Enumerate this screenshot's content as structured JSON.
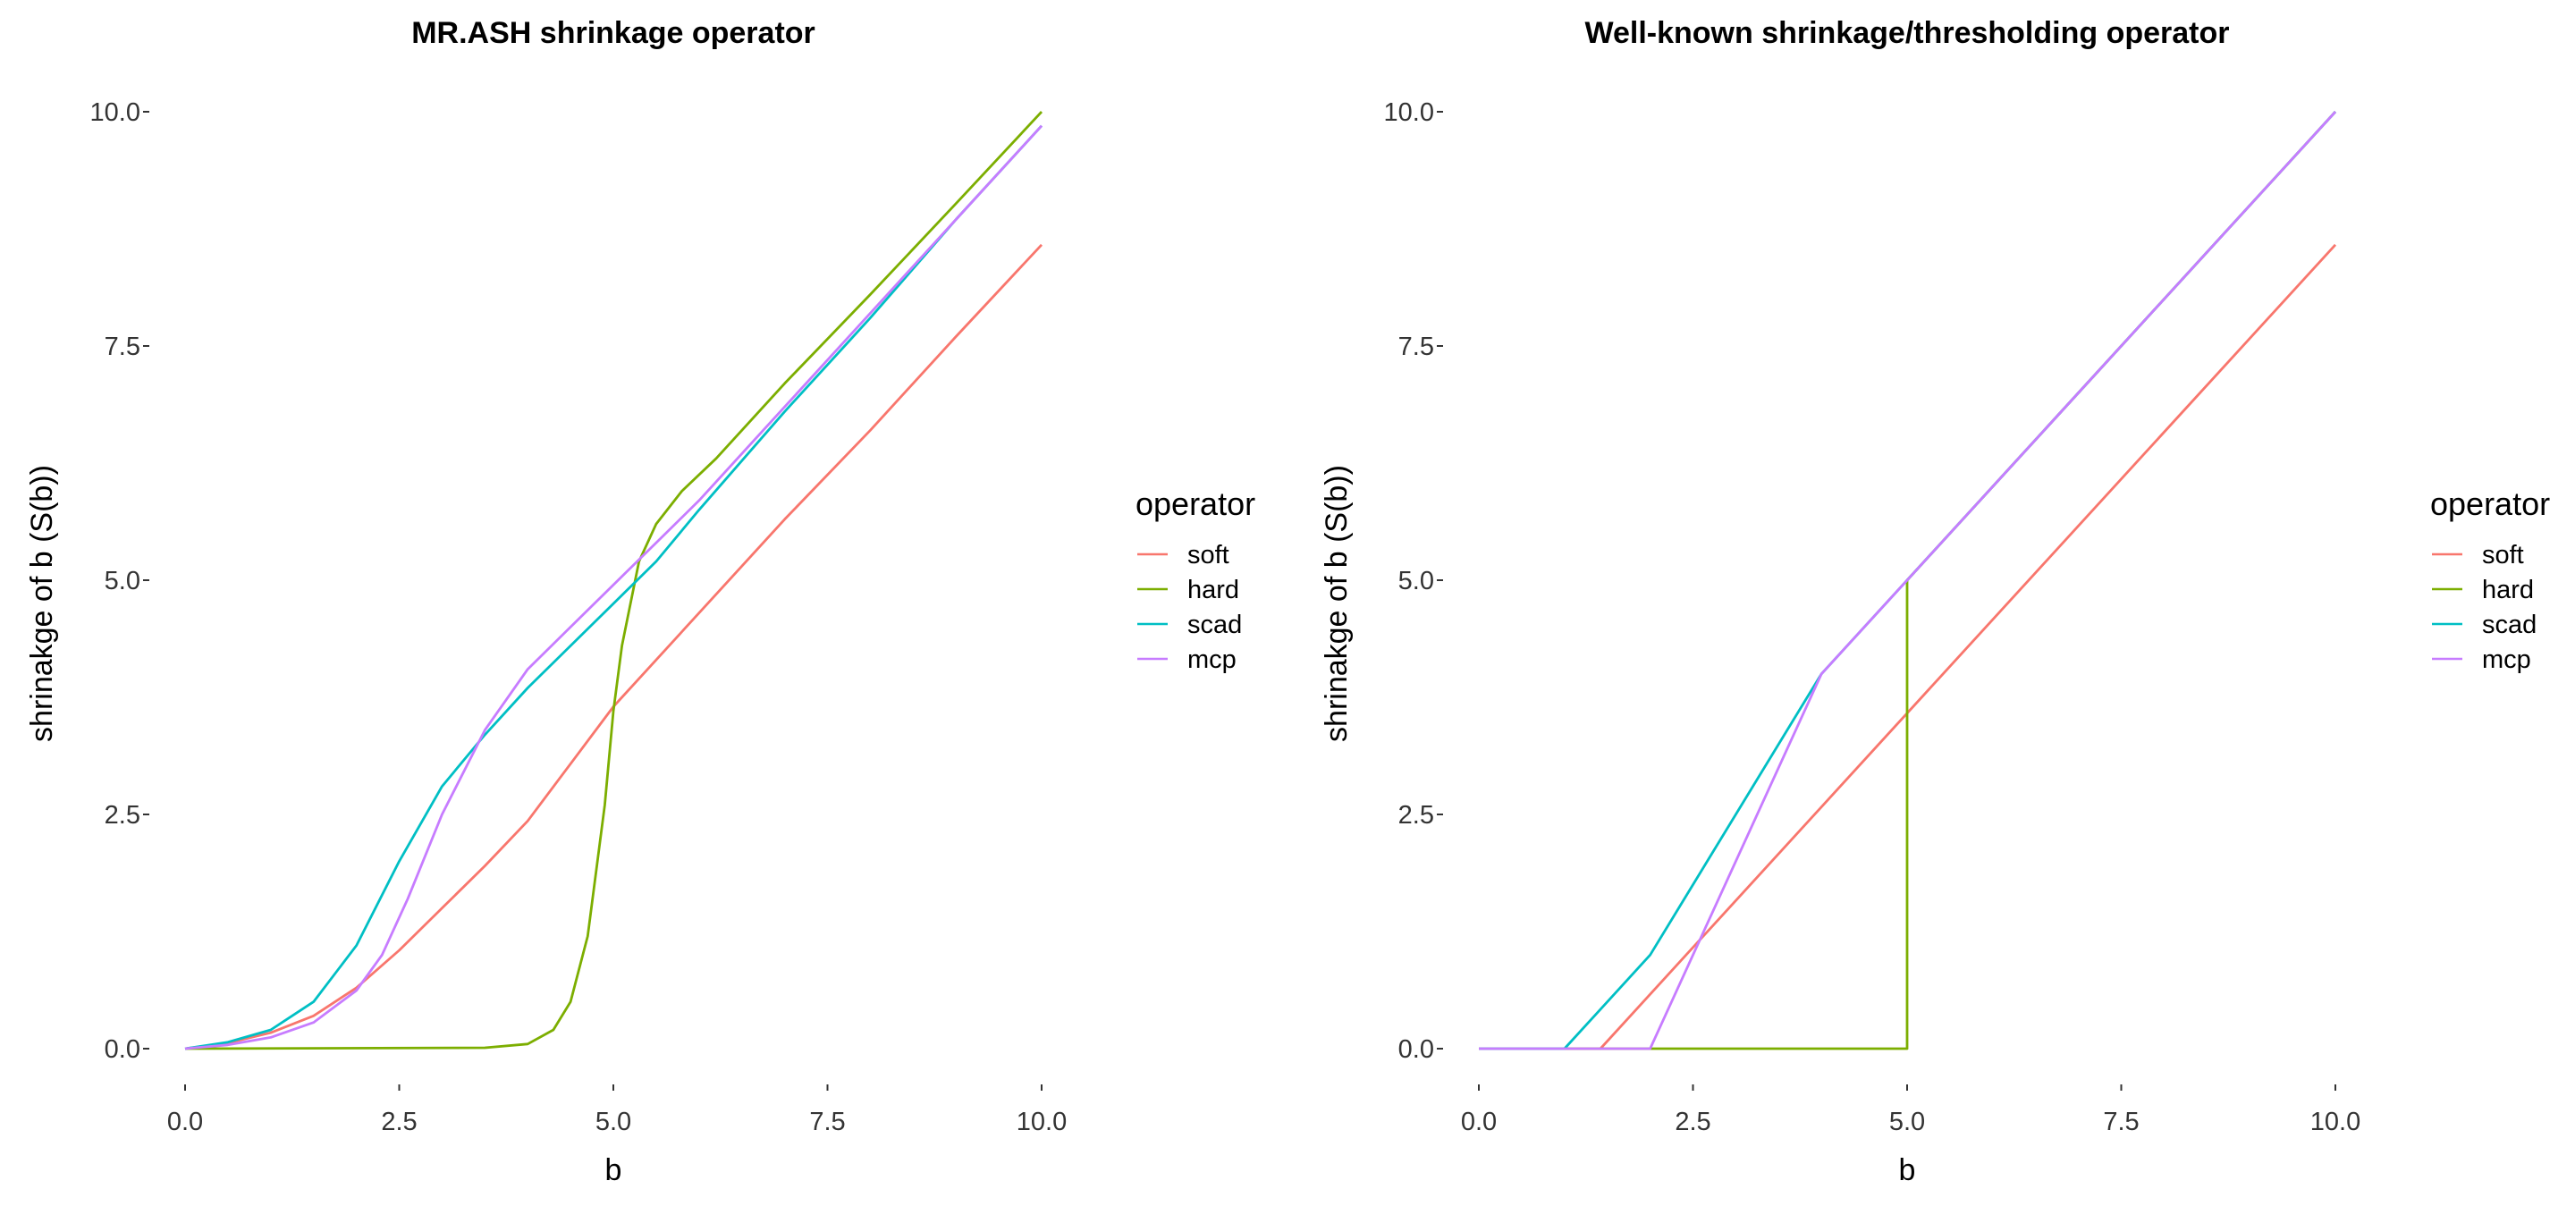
{
  "chart_data": [
    {
      "type": "line",
      "title": "MR.ASH shrinkage operator",
      "xlabel": "b",
      "ylabel": "shrinakge of b (S(b))",
      "xlim": [
        0,
        10
      ],
      "ylim": [
        0,
        10
      ],
      "xticks": [
        "0.0",
        "2.5",
        "5.0",
        "7.5",
        "10.0"
      ],
      "yticks": [
        "0.0",
        "2.5",
        "5.0",
        "7.5",
        "10.0"
      ],
      "grid": false,
      "legend": {
        "title": "operator",
        "position": "right"
      },
      "series": [
        {
          "name": "soft",
          "color": "#F8766D",
          "x": [
            0,
            0.5,
            1,
            1.5,
            2,
            2.5,
            3,
            3.5,
            4,
            5,
            6,
            7,
            8,
            9,
            10
          ],
          "y": [
            0,
            0.06,
            0.17,
            0.35,
            0.65,
            1.05,
            1.5,
            1.95,
            2.43,
            3.65,
            4.65,
            5.65,
            6.6,
            7.6,
            8.58
          ]
        },
        {
          "name": "hard",
          "color": "#7CAE00",
          "x": [
            0,
            3.5,
            4.0,
            4.3,
            4.5,
            4.7,
            4.9,
            5.0,
            5.1,
            5.3,
            5.5,
            5.8,
            6.2,
            7,
            8,
            9,
            10
          ],
          "y": [
            0,
            0.01,
            0.05,
            0.2,
            0.5,
            1.2,
            2.6,
            3.6,
            4.3,
            5.2,
            5.6,
            5.95,
            6.3,
            7.1,
            8.05,
            9.02,
            10.0
          ]
        },
        {
          "name": "scad",
          "color": "#00BFC4",
          "x": [
            0,
            0.5,
            1,
            1.5,
            2,
            2.5,
            3,
            3.5,
            4,
            4.5,
            5,
            5.5,
            6,
            7,
            8,
            9,
            10
          ],
          "y": [
            0,
            0.07,
            0.2,
            0.5,
            1.1,
            2.0,
            2.8,
            3.35,
            3.85,
            4.3,
            4.75,
            5.2,
            5.75,
            6.8,
            7.8,
            8.85,
            9.85
          ]
        },
        {
          "name": "mcp",
          "color": "#C77CFF",
          "x": [
            0,
            0.5,
            1,
            1.5,
            2,
            2.3,
            2.6,
            3,
            3.5,
            4,
            4.5,
            5,
            5.5,
            6,
            7,
            8,
            9,
            10
          ],
          "y": [
            0,
            0.04,
            0.12,
            0.28,
            0.62,
            1.0,
            1.6,
            2.5,
            3.4,
            4.05,
            4.5,
            4.95,
            5.4,
            5.85,
            6.85,
            7.85,
            8.85,
            9.85
          ]
        }
      ]
    },
    {
      "type": "line",
      "title": "Well-known shrinkage/thresholding operator",
      "xlabel": "b",
      "ylabel": "shrinakge of b (S(b))",
      "xlim": [
        0,
        10
      ],
      "ylim": [
        0,
        10
      ],
      "xticks": [
        "0.0",
        "2.5",
        "5.0",
        "7.5",
        "10.0"
      ],
      "yticks": [
        "0.0",
        "2.5",
        "5.0",
        "7.5",
        "10.0"
      ],
      "grid": false,
      "legend": {
        "title": "operator",
        "position": "right"
      },
      "series": [
        {
          "name": "soft",
          "color": "#F8766D",
          "x": [
            0,
            1.42,
            10
          ],
          "y": [
            0,
            0,
            8.58
          ]
        },
        {
          "name": "hard",
          "color": "#7CAE00",
          "x": [
            0,
            5,
            5,
            10
          ],
          "y": [
            0,
            0,
            5,
            10
          ]
        },
        {
          "name": "scad",
          "color": "#00BFC4",
          "x": [
            0,
            1,
            2,
            4,
            10
          ],
          "y": [
            0,
            0,
            1,
            4,
            10
          ]
        },
        {
          "name": "mcp",
          "color": "#C77CFF",
          "x": [
            0,
            2,
            4,
            10
          ],
          "y": [
            0,
            0,
            4,
            10
          ]
        }
      ]
    }
  ]
}
